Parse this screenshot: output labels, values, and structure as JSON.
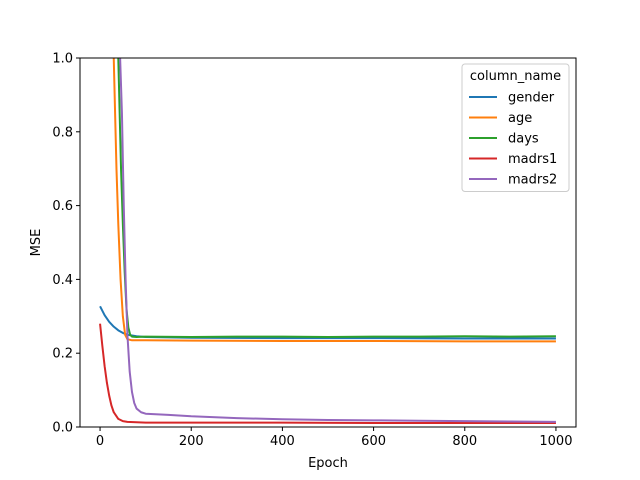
{
  "chart_data": {
    "type": "line",
    "title": "",
    "xlabel": "Epoch",
    "ylabel": "MSE",
    "xlim": [
      -44,
      1044
    ],
    "ylim": [
      0,
      1.0
    ],
    "xticks": [
      0,
      200,
      400,
      600,
      800,
      1000
    ],
    "xtick_labels": [
      "0",
      "200",
      "400",
      "600",
      "800",
      "1000"
    ],
    "yticks": [
      0,
      0.2,
      0.4,
      0.6,
      0.8,
      1.0
    ],
    "ytick_labels": [
      "0.0",
      "0.2",
      "0.4",
      "0.6",
      "0.8",
      "1.0"
    ],
    "grid": false,
    "legend": {
      "title": "column_name",
      "placement": "top-right"
    },
    "series": [
      {
        "name": "gender",
        "color": "#1f77b4",
        "x": [
          0,
          10,
          20,
          30,
          40,
          50,
          60,
          80,
          100,
          200,
          400,
          600,
          800,
          1000
        ],
        "y": [
          0.327,
          0.303,
          0.285,
          0.272,
          0.262,
          0.255,
          0.25,
          0.246,
          0.244,
          0.242,
          0.241,
          0.241,
          0.24,
          0.24
        ]
      },
      {
        "name": "age",
        "color": "#ff7f0e",
        "x": [
          30,
          33,
          36,
          40,
          45,
          50,
          55,
          60,
          70,
          100,
          200,
          400,
          600,
          800,
          1000
        ],
        "y": [
          1.0,
          0.85,
          0.7,
          0.55,
          0.4,
          0.3,
          0.25,
          0.238,
          0.235,
          0.235,
          0.234,
          0.233,
          0.233,
          0.232,
          0.232
        ]
      },
      {
        "name": "days",
        "color": "#2ca02c",
        "x": [
          40,
          43,
          46,
          50,
          54,
          58,
          62,
          66,
          70,
          80,
          100,
          200,
          300,
          400,
          500,
          600,
          700,
          800,
          900,
          1000
        ],
        "y": [
          1.0,
          0.85,
          0.7,
          0.55,
          0.42,
          0.32,
          0.27,
          0.25,
          0.245,
          0.244,
          0.245,
          0.244,
          0.245,
          0.245,
          0.244,
          0.245,
          0.245,
          0.246,
          0.245,
          0.246
        ]
      },
      {
        "name": "madrs1",
        "color": "#d62728",
        "x": [
          0,
          5,
          10,
          15,
          20,
          25,
          30,
          40,
          50,
          60,
          80,
          100,
          200,
          400,
          600,
          800,
          1000
        ],
        "y": [
          0.28,
          0.22,
          0.165,
          0.12,
          0.085,
          0.058,
          0.04,
          0.022,
          0.016,
          0.014,
          0.013,
          0.012,
          0.012,
          0.012,
          0.011,
          0.011,
          0.011
        ]
      },
      {
        "name": "madrs2",
        "color": "#9467bd",
        "x": [
          44,
          48,
          52,
          56,
          60,
          65,
          70,
          75,
          80,
          90,
          100,
          150,
          200,
          300,
          400,
          500,
          600,
          700,
          800,
          900,
          1000
        ],
        "y": [
          1.0,
          0.85,
          0.6,
          0.4,
          0.25,
          0.15,
          0.095,
          0.065,
          0.05,
          0.04,
          0.036,
          0.033,
          0.029,
          0.024,
          0.021,
          0.019,
          0.018,
          0.017,
          0.016,
          0.015,
          0.014
        ]
      }
    ]
  }
}
